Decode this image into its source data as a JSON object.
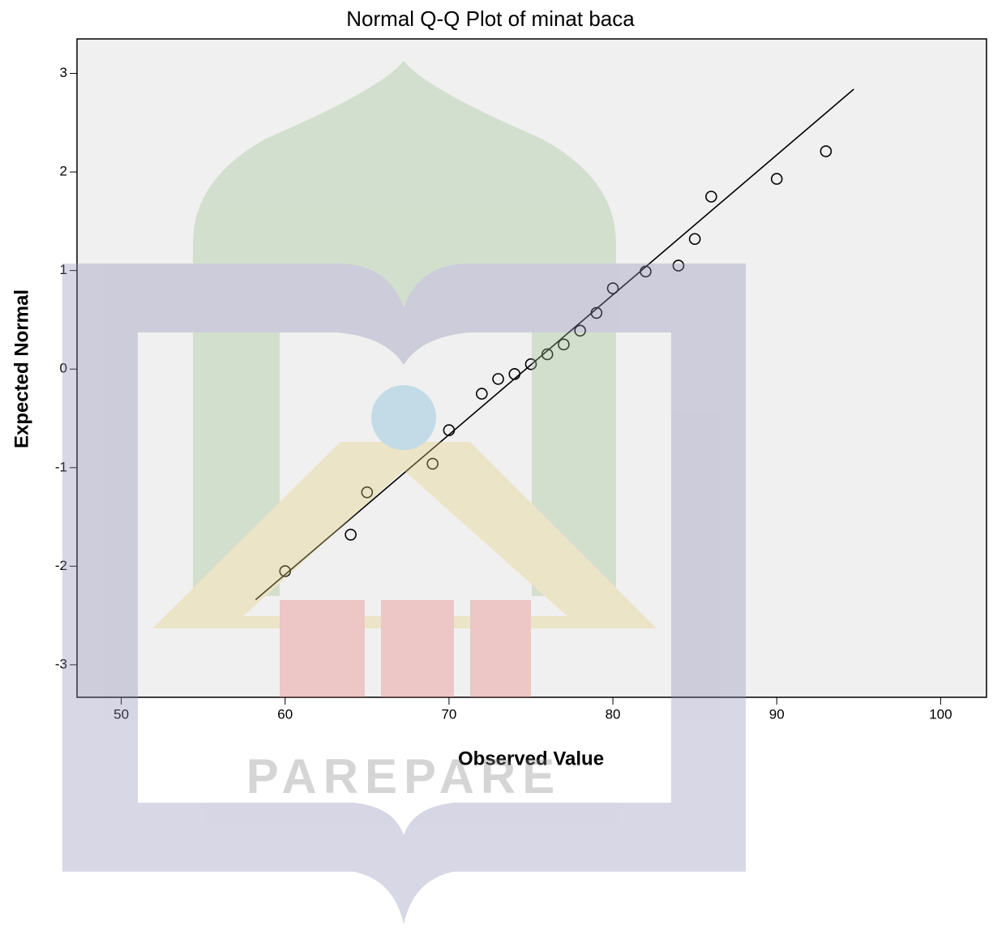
{
  "chart_data": {
    "type": "scatter",
    "title": "Normal Q-Q Plot of minat baca",
    "x_label": "Observed Value",
    "y_label": "Expected Normal",
    "x": [
      60,
      64,
      65,
      69,
      70,
      72,
      73,
      74,
      75,
      76,
      77,
      78,
      79,
      80,
      82,
      84,
      85,
      86,
      90,
      93
    ],
    "values": [
      -2.05,
      -1.68,
      -1.25,
      -0.96,
      -0.62,
      -0.25,
      -0.1,
      -0.05,
      0.05,
      0.15,
      0.25,
      0.39,
      0.57,
      0.82,
      0.99,
      1.05,
      1.32,
      1.75,
      1.93,
      2.21
    ],
    "color": "#000000",
    "reference_line": {
      "x": [
        58.2,
        94.7
      ],
      "y": [
        -2.34,
        2.84
      ]
    },
    "xlim": [
      47.3,
      102.8
    ],
    "ylim": [
      -3.33,
      3.35
    ],
    "xticks": [
      50,
      60,
      70,
      80,
      90,
      100
    ],
    "yticks": [
      -3,
      -2,
      -1,
      0,
      1,
      2,
      3
    ],
    "grid": false,
    "watermark": "PAREPARE"
  }
}
